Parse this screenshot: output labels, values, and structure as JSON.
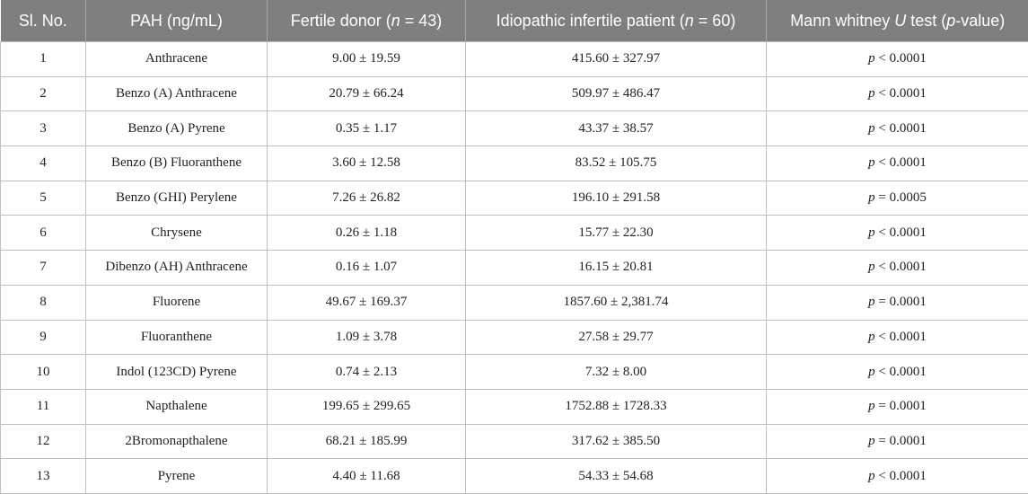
{
  "table": {
    "headers": {
      "sl_no": "Sl. No.",
      "pah": "PAH (ng/mL)",
      "fertile_prefix": "Fertile donor (",
      "fertile_n": "n",
      "fertile_suffix": " = 43)",
      "infertile_prefix": "Idiopathic infertile patient (",
      "infertile_n": "n",
      "infertile_suffix": " = 60)",
      "mw_prefix": "Mann whitney ",
      "mw_u": "U",
      "mw_mid": " test (",
      "mw_p": "p",
      "mw_suffix": "-value)"
    },
    "rows": [
      {
        "sl": "1",
        "pah": "Anthracene",
        "fertile": "9.00 ± 19.59",
        "infertile": "415.60 ± 327.97",
        "p_sym": "p",
        "p_val": " < 0.0001"
      },
      {
        "sl": "2",
        "pah": "Benzo (A) Anthracene",
        "fertile": "20.79 ± 66.24",
        "infertile": "509.97 ± 486.47",
        "p_sym": "p",
        "p_val": " < 0.0001"
      },
      {
        "sl": "3",
        "pah": "Benzo (A) Pyrene",
        "fertile": "0.35 ± 1.17",
        "infertile": "43.37 ± 38.57",
        "p_sym": "p",
        "p_val": " < 0.0001"
      },
      {
        "sl": "4",
        "pah": "Benzo (B) Fluoranthene",
        "fertile": "3.60 ± 12.58",
        "infertile": "83.52 ± 105.75",
        "p_sym": "p",
        "p_val": " < 0.0001"
      },
      {
        "sl": "5",
        "pah": "Benzo (GHI) Perylene",
        "fertile": "7.26 ± 26.82",
        "infertile": "196.10 ± 291.58",
        "p_sym": "p",
        "p_val": " = 0.0005"
      },
      {
        "sl": "6",
        "pah": "Chrysene",
        "fertile": "0.26 ± 1.18",
        "infertile": "15.77 ± 22.30",
        "p_sym": "p",
        "p_val": " < 0.0001"
      },
      {
        "sl": "7",
        "pah": "Dibenzo (AH) Anthracene",
        "fertile": "0.16 ± 1.07",
        "infertile": "16.15 ± 20.81",
        "p_sym": "p",
        "p_val": " < 0.0001"
      },
      {
        "sl": "8",
        "pah": "Fluorene",
        "fertile": "49.67 ± 169.37",
        "infertile": "1857.60 ± 2,381.74",
        "p_sym": "p",
        "p_val": " = 0.0001"
      },
      {
        "sl": "9",
        "pah": "Fluoranthene",
        "fertile": "1.09 ± 3.78",
        "infertile": "27.58 ± 29.77",
        "p_sym": "p",
        "p_val": " < 0.0001"
      },
      {
        "sl": "10",
        "pah": "Indol (123CD) Pyrene",
        "fertile": "0.74 ± 2.13",
        "infertile": "7.32 ± 8.00",
        "p_sym": "p",
        "p_val": " < 0.0001"
      },
      {
        "sl": "11",
        "pah": "Napthalene",
        "fertile": "199.65 ± 299.65",
        "infertile": "1752.88 ± 1728.33",
        "p_sym": "p",
        "p_val": " = 0.0001"
      },
      {
        "sl": "12",
        "pah": "2Bromonapthalene",
        "fertile": "68.21 ± 185.99",
        "infertile": "317.62 ± 385.50",
        "p_sym": "p",
        "p_val": " = 0.0001"
      },
      {
        "sl": "13",
        "pah": "Pyrene",
        "fertile": "4.40 ± 11.68",
        "infertile": "54.33 ± 54.68",
        "p_sym": "p",
        "p_val": " < 0.0001"
      }
    ]
  },
  "colors": {
    "header_bg": "#7f7f7f",
    "header_text": "#ffffff",
    "border": "#bfbfbf"
  }
}
